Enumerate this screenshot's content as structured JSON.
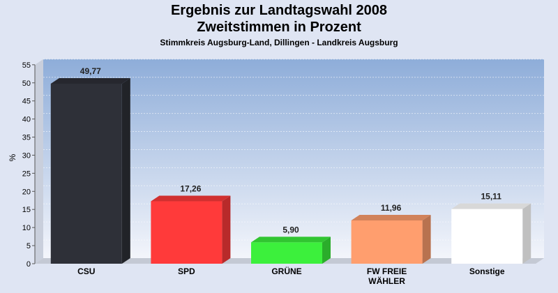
{
  "chart_data": {
    "type": "bar",
    "title": "Ergebnis zur Landtagswahl 2008",
    "subtitle": "Zweitstimmen in Prozent",
    "caption": "Stimmkreis Augsburg-Land, Dillingen - Landkreis Augsburg",
    "ylabel": "%",
    "ylim": [
      0,
      55
    ],
    "yticks": [
      0,
      5,
      10,
      15,
      20,
      25,
      30,
      35,
      40,
      45,
      50,
      55
    ],
    "categories": [
      "CSU",
      "SPD",
      "GRÜNE",
      "FW FREIE\nWÄHLER",
      "Sonstige"
    ],
    "values": [
      49.77,
      17.26,
      5.9,
      11.96,
      15.11
    ],
    "value_labels": [
      "49,77",
      "17,26",
      "5,90",
      "11,96",
      "15,11"
    ],
    "colors": [
      "#2e3038",
      "#ff3a3a",
      "#3cf03c",
      "#ff9e6e",
      "#ffffff"
    ],
    "grid": true
  }
}
